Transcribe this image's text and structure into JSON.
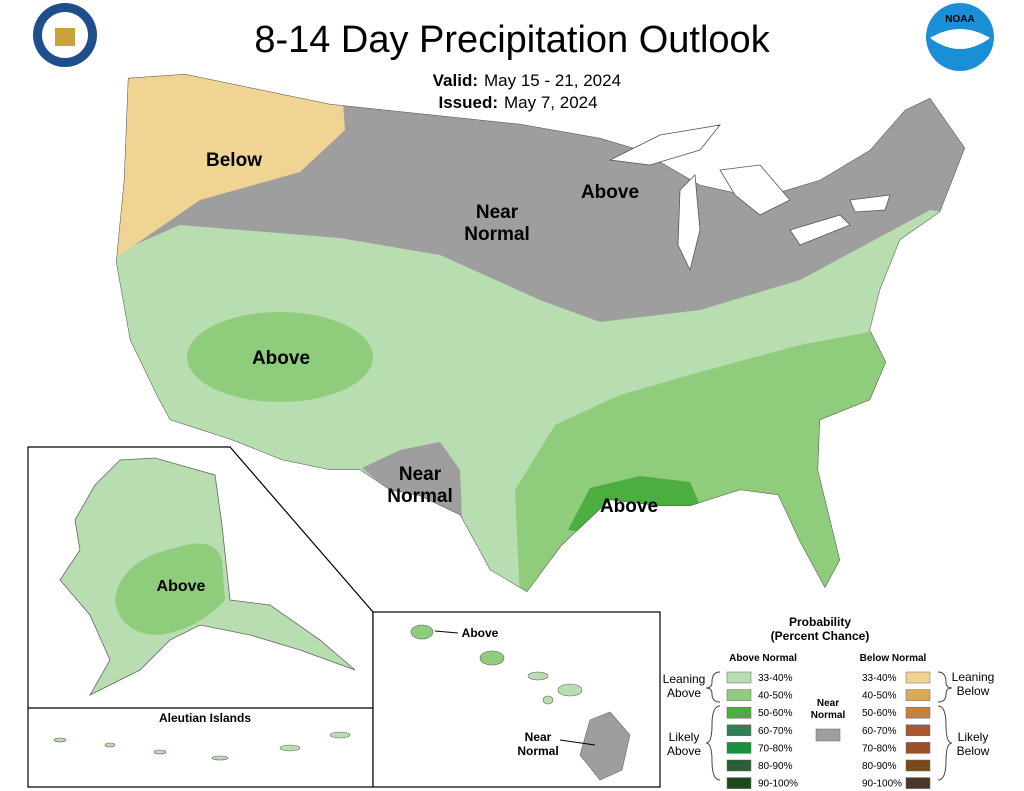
{
  "header": {
    "title": "8-14 Day Precipitation Outlook",
    "valid_label": "Valid:",
    "valid": "May 15 - 21, 2024",
    "issued_label": "Issued:",
    "issued": "May 7, 2024"
  },
  "map_labels": {
    "conus": [
      {
        "lines": [
          "Below"
        ]
      },
      {
        "lines": [
          "Near",
          "Normal"
        ]
      },
      {
        "lines": [
          "Above"
        ]
      },
      {
        "lines": [
          "Above"
        ]
      },
      {
        "lines": [
          "Near",
          "Normal"
        ]
      },
      {
        "lines": [
          "Above"
        ]
      }
    ],
    "alaska": [
      "Above"
    ],
    "aleutian": "Aleutian Islands",
    "hawaii": [
      {
        "lines": [
          "Above"
        ]
      },
      {
        "lines": [
          "Near",
          "Normal"
        ]
      }
    ]
  },
  "legend": {
    "title": [
      "Probability",
      "(Percent Chance)"
    ],
    "above_header": "Above Normal",
    "below_header": "Below Normal",
    "above": [
      {
        "label": "33-40%",
        "color": "#b7ddb0"
      },
      {
        "label": "40-50%",
        "color": "#8fcc7c"
      },
      {
        "label": "50-60%",
        "color": "#4cae3e"
      },
      {
        "label": "60-70%",
        "color": "#2f7f56"
      },
      {
        "label": "70-80%",
        "color": "#17913e"
      },
      {
        "label": "80-90%",
        "color": "#2a5e36"
      },
      {
        "label": "90-100%",
        "color": "#1d4a1d"
      }
    ],
    "below": [
      {
        "label": "33-40%",
        "color": "#f0d493"
      },
      {
        "label": "40-50%",
        "color": "#d9a85a"
      },
      {
        "label": "50-60%",
        "color": "#c9803c"
      },
      {
        "label": "60-70%",
        "color": "#a85a2e"
      },
      {
        "label": "70-80%",
        "color": "#9a4e2a"
      },
      {
        "label": "80-90%",
        "color": "#7a4a1a"
      },
      {
        "label": "90-100%",
        "color": "#4a3628"
      }
    ],
    "leaning_above": [
      "Leaning",
      "Above"
    ],
    "likely_above": [
      "Likely",
      "Above"
    ],
    "near_normal": [
      "Near",
      "Normal"
    ],
    "near_normal_color": "#9e9e9e",
    "leaning_below": [
      "Leaning",
      "Below"
    ],
    "likely_below": [
      "Likely",
      "Below"
    ]
  }
}
